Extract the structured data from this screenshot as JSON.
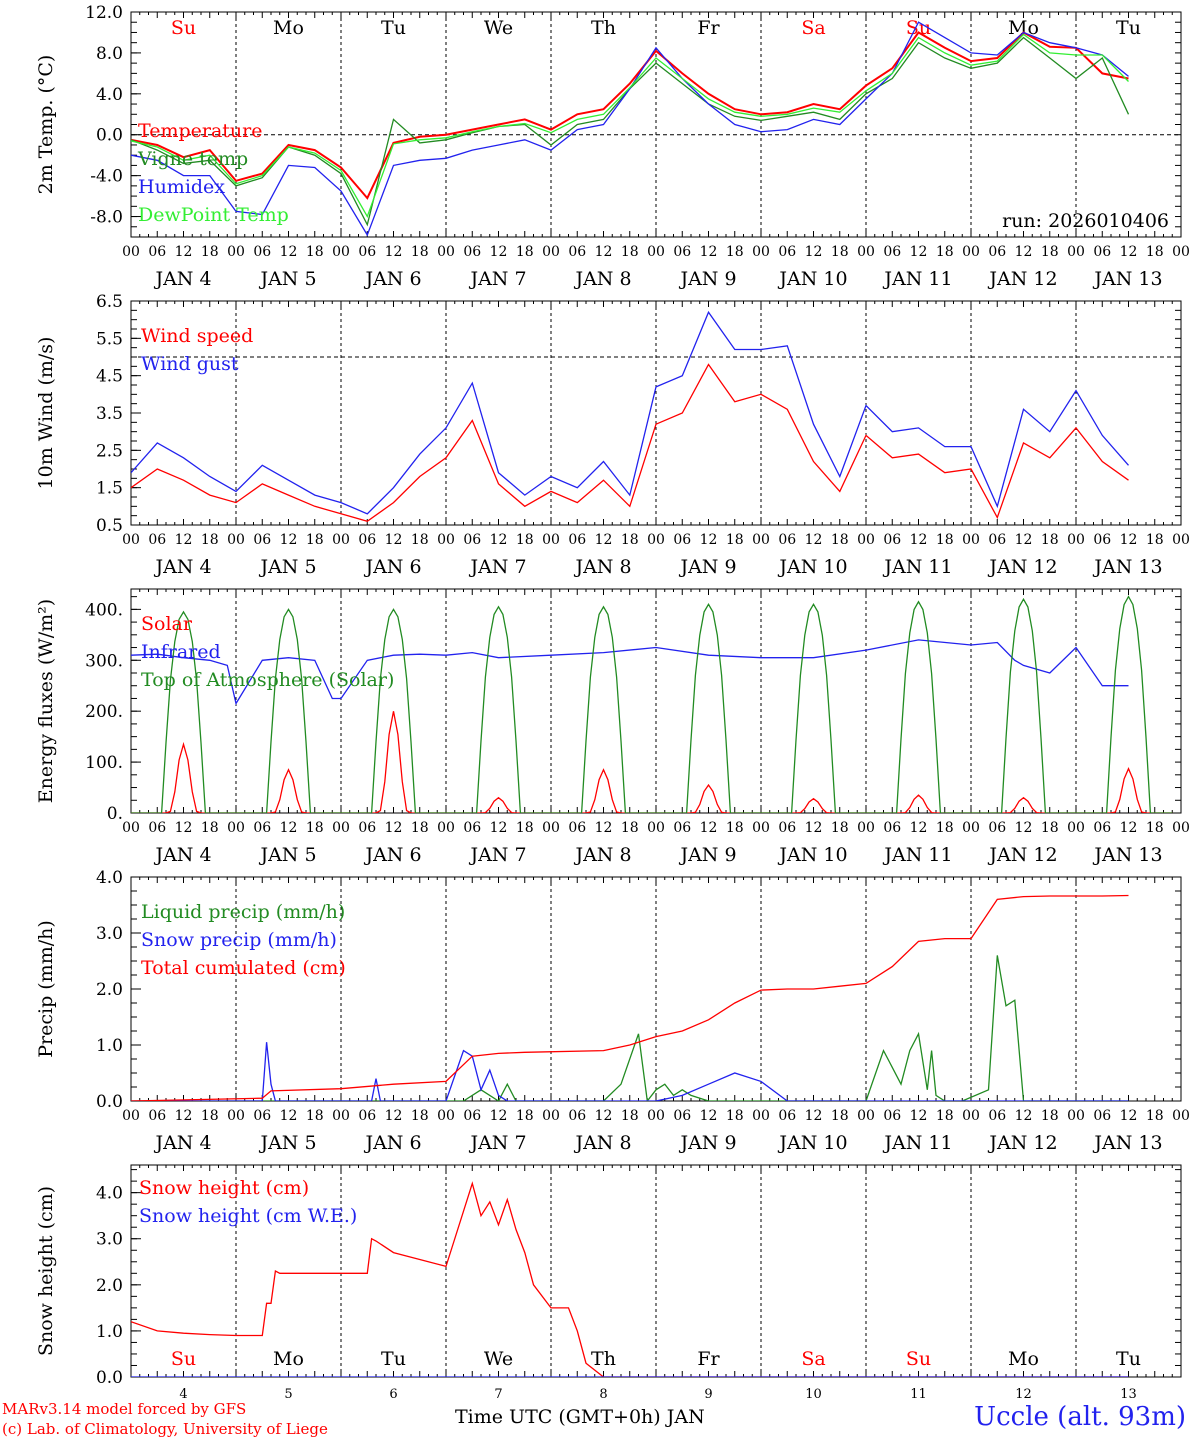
{
  "meta": {
    "run_label": "run: 2026010406",
    "credit_line1": "MARv3.14 model forced by GFS",
    "credit_line2": "(c) Lab. of Climatology, University of Liege",
    "x_axis_title": "Time UTC (GMT+0h) JAN",
    "station": "Uccle (alt. 93m)"
  },
  "time_axis": {
    "hour_ticks": [
      "00",
      "06",
      "12",
      "18"
    ],
    "date_labels": [
      "JAN  4",
      "JAN  5",
      "JAN  6",
      "JAN  7",
      "JAN  8",
      "JAN  9",
      "JAN 10",
      "JAN 11",
      "JAN 12",
      "JAN 13"
    ],
    "weekdays": [
      "Su",
      "Mo",
      "Tu",
      "We",
      "Th",
      "Fr",
      "Sa",
      "Su",
      "Mo",
      "Tu"
    ],
    "day_numbers": [
      "4",
      "5",
      "6",
      "7",
      "8",
      "9",
      "10",
      "11",
      "12",
      "13"
    ],
    "weekend_color": "#ff0000",
    "weekday_color": "#000000"
  },
  "colors": {
    "red": "#ff0000",
    "dark_green": "#228b22",
    "blue": "#2222ee",
    "light_green": "#33ee33"
  },
  "chart_data": [
    {
      "type": "line",
      "title": "2m Temp.",
      "ylabel": "2m Temp. (°C)",
      "ylim": [
        -10,
        12
      ],
      "y_ticks": [
        "12.0",
        "8.0",
        "4.0",
        "0.0",
        "-4.0",
        "-8.0"
      ],
      "y_tick_values": [
        12,
        8,
        4,
        0,
        -4,
        -8
      ],
      "reference_line": 0,
      "x_unit": "hours since JAN 4 00 UTC",
      "series": [
        {
          "name": "Temperature",
          "color": "#ff0000",
          "x": [
            0,
            6,
            12,
            18,
            24,
            30,
            36,
            42,
            48,
            54,
            60,
            66,
            72,
            78,
            84,
            90,
            96,
            102,
            108,
            114,
            120,
            126,
            132,
            138,
            144,
            150,
            156,
            162,
            168,
            174,
            180,
            186,
            192,
            198,
            204,
            210,
            216,
            222,
            228
          ],
          "values": [
            -0.5,
            -1,
            -2.2,
            -1.5,
            -4.5,
            -3.8,
            -1,
            -1.5,
            -3.2,
            -6.2,
            -0.8,
            -0.2,
            0,
            0.5,
            1,
            1.5,
            0.5,
            2,
            2.5,
            5,
            8.2,
            6,
            4,
            2.5,
            2,
            2.2,
            3,
            2.5,
            4.8,
            6.5,
            10,
            8.5,
            7.2,
            7.5,
            10,
            8.6,
            8.5,
            6,
            5.5
          ]
        },
        {
          "name": "Vigne temp",
          "color": "#228b22",
          "x": [
            0,
            6,
            12,
            18,
            24,
            30,
            36,
            42,
            48,
            54,
            60,
            66,
            72,
            78,
            84,
            90,
            96,
            102,
            108,
            114,
            120,
            126,
            132,
            138,
            144,
            150,
            156,
            162,
            168,
            174,
            180,
            186,
            192,
            198,
            204,
            210,
            216,
            222,
            228
          ],
          "values": [
            -0.5,
            -1.5,
            -2.8,
            -2.5,
            -5,
            -4.2,
            -1.2,
            -2,
            -3.8,
            -8.8,
            1.5,
            -0.8,
            -0.5,
            0.2,
            0.8,
            1,
            -1,
            1,
            1.5,
            4.5,
            7,
            5,
            3,
            1.8,
            1.4,
            1.8,
            2.2,
            1.5,
            4,
            5.5,
            9,
            7.5,
            6.5,
            7,
            9.5,
            7.5,
            5.5,
            7.5,
            2
          ]
        },
        {
          "name": "Humidex",
          "color": "#2222ee",
          "x": [
            0,
            6,
            12,
            18,
            24,
            30,
            36,
            42,
            48,
            54,
            60,
            66,
            72,
            78,
            84,
            90,
            96,
            102,
            108,
            114,
            120,
            126,
            132,
            138,
            144,
            150,
            156,
            162,
            168,
            174,
            180,
            186,
            192,
            198,
            204,
            210,
            216,
            222,
            228
          ],
          "values": [
            -2,
            -2.5,
            -4,
            -4,
            -7.5,
            -7.8,
            -3,
            -3.2,
            -5.5,
            -9.8,
            -3,
            -2.5,
            -2.3,
            -1.5,
            -1,
            -0.5,
            -1.5,
            0.5,
            1,
            4.5,
            8.5,
            5.5,
            3,
            1,
            0.3,
            0.5,
            1.5,
            1,
            3.5,
            6,
            11,
            9.5,
            8,
            7.8,
            10,
            9,
            8.5,
            7.8,
            5.7
          ]
        },
        {
          "name": "DewPoint Temp",
          "color": "#33ee33",
          "x": [
            0,
            6,
            12,
            18,
            24,
            30,
            36,
            42,
            48,
            54,
            60,
            66,
            72,
            78,
            84,
            90,
            96,
            102,
            108,
            114,
            120,
            126,
            132,
            138,
            144,
            150,
            156,
            162,
            168,
            174,
            180,
            186,
            192,
            198,
            204,
            210,
            216,
            222,
            228
          ],
          "values": [
            -0.6,
            -1.2,
            -2.5,
            -2,
            -4.8,
            -4,
            -1.2,
            -1.8,
            -3.5,
            -8,
            -0.9,
            -0.5,
            -0.3,
            0.3,
            0.8,
            1.1,
            0.2,
            1.5,
            2,
            4.6,
            7.5,
            5.5,
            3.5,
            2.2,
            1.8,
            2,
            2.6,
            2.2,
            4.3,
            6,
            9.5,
            8,
            6.8,
            7.2,
            9.8,
            8,
            7.8,
            7.8,
            5.2
          ]
        }
      ]
    },
    {
      "type": "line",
      "title": "10m Wind",
      "ylabel": "10m Wind (m/s)",
      "ylim": [
        0.5,
        6.5
      ],
      "y_ticks": [
        "6.5",
        "5.5",
        "4.5",
        "3.5",
        "2.5",
        "1.5",
        "0.5"
      ],
      "y_tick_values": [
        6.5,
        5.5,
        4.5,
        3.5,
        2.5,
        1.5,
        0.5
      ],
      "reference_line": 5.0,
      "x_unit": "hours since JAN 4 00 UTC",
      "series": [
        {
          "name": "Wind speed",
          "color": "#ff0000",
          "x": [
            0,
            6,
            12,
            18,
            24,
            30,
            36,
            42,
            48,
            54,
            60,
            66,
            72,
            78,
            84,
            90,
            96,
            102,
            108,
            114,
            120,
            126,
            132,
            138,
            144,
            150,
            156,
            162,
            168,
            174,
            180,
            186,
            192,
            198,
            204,
            210,
            216,
            222,
            228
          ],
          "values": [
            1.5,
            2,
            1.7,
            1.3,
            1.1,
            1.6,
            1.3,
            1,
            0.8,
            0.6,
            1.1,
            1.8,
            2.3,
            3.3,
            1.6,
            1,
            1.4,
            1.1,
            1.7,
            1,
            3.2,
            3.5,
            4.8,
            3.8,
            4,
            3.6,
            2.2,
            1.4,
            2.9,
            2.3,
            2.4,
            1.9,
            2,
            0.7,
            2.7,
            2.3,
            3.1,
            2.2,
            1.7
          ]
        },
        {
          "name": "Wind gust",
          "color": "#2222ee",
          "x": [
            0,
            6,
            12,
            18,
            24,
            30,
            36,
            42,
            48,
            54,
            60,
            66,
            72,
            78,
            84,
            90,
            96,
            102,
            108,
            114,
            120,
            126,
            132,
            138,
            144,
            150,
            156,
            162,
            168,
            174,
            180,
            186,
            192,
            198,
            204,
            210,
            216,
            222,
            228
          ],
          "values": [
            1.9,
            2.7,
            2.3,
            1.8,
            1.4,
            2.1,
            1.7,
            1.3,
            1.1,
            0.8,
            1.5,
            2.4,
            3.1,
            4.3,
            1.9,
            1.3,
            1.8,
            1.5,
            2.2,
            1.3,
            4.2,
            4.5,
            6.2,
            5.2,
            5.2,
            5.3,
            3.2,
            1.8,
            3.7,
            3,
            3.1,
            2.6,
            2.6,
            1,
            3.6,
            3,
            4.1,
            2.9,
            2.1
          ]
        }
      ]
    },
    {
      "type": "line",
      "title": "Energy fluxes",
      "ylabel": "Energy fluxes (W/m²)",
      "ylim": [
        0,
        440
      ],
      "y_ticks": [
        "400.",
        "300.",
        "200.",
        "100.",
        "0."
      ],
      "y_tick_values": [
        400,
        300,
        200,
        100,
        0
      ],
      "x_unit": "hours since JAN 4 00 UTC",
      "series": [
        {
          "name": "Solar",
          "color": "#ff0000",
          "daily_peaks": [
            135,
            85,
            200,
            30,
            85,
            55,
            28,
            35,
            30,
            87
          ],
          "peak_hour_utc": 12
        },
        {
          "name": "Infrared",
          "color": "#2222ee",
          "x": [
            0,
            6,
            12,
            18,
            22,
            24,
            30,
            36,
            42,
            46,
            48,
            54,
            60,
            66,
            72,
            78,
            84,
            96,
            108,
            120,
            132,
            144,
            156,
            168,
            180,
            192,
            198,
            202,
            204,
            210,
            216,
            222,
            228
          ],
          "values": [
            310,
            312,
            305,
            300,
            290,
            215,
            300,
            305,
            300,
            225,
            225,
            300,
            310,
            312,
            310,
            315,
            305,
            310,
            315,
            325,
            310,
            305,
            305,
            320,
            340,
            330,
            335,
            300,
            290,
            275,
            325,
            250,
            250
          ]
        },
        {
          "name": "Top of Atmosphere (Solar)",
          "color": "#228b22",
          "daily_peaks": [
            395,
            400,
            400,
            405,
            405,
            410,
            410,
            415,
            420,
            425
          ],
          "peak_hour_utc": 12
        }
      ]
    },
    {
      "type": "line",
      "title": "Precip",
      "ylabel": "Precip (mm/h)",
      "ylim": [
        0,
        4.0
      ],
      "y_ticks": [
        "4.0",
        "3.0",
        "2.0",
        "1.0",
        "0.0"
      ],
      "y_tick_values": [
        4,
        3,
        2,
        1,
        0
      ],
      "x_unit": "hours since JAN 4 00 UTC",
      "series": [
        {
          "name": "Liquid precip (mm/h)",
          "color": "#228b22",
          "x": [
            0,
            60,
            76,
            80,
            84,
            86,
            88,
            108,
            112,
            116,
            118,
            120,
            122,
            124,
            126,
            128,
            132,
            152,
            168,
            172,
            174,
            176,
            178,
            180,
            182,
            183,
            184,
            186,
            190,
            196,
            198,
            200,
            202,
            204,
            206,
            228
          ],
          "values": [
            0,
            0,
            0,
            0.2,
            0,
            0.3,
            0,
            0,
            0.3,
            1.2,
            0,
            0.2,
            0.3,
            0.1,
            0.2,
            0.1,
            0,
            0,
            0,
            0.9,
            0.6,
            0.3,
            0.9,
            1.2,
            0.2,
            0.9,
            0.1,
            0,
            0,
            0.2,
            2.6,
            1.7,
            1.8,
            0,
            0,
            0
          ]
        },
        {
          "name": "Snow precip (mm/h)",
          "color": "#2222ee",
          "x": [
            0,
            30,
            31,
            32,
            33,
            48,
            55,
            56,
            57,
            72,
            76,
            78,
            80,
            82,
            84,
            86,
            88,
            120,
            126,
            132,
            138,
            144,
            150,
            228
          ],
          "values": [
            0,
            0,
            1.05,
            0.3,
            0,
            0,
            0,
            0.4,
            0,
            0,
            0.9,
            0.8,
            0.2,
            0.55,
            0.1,
            0,
            0,
            0,
            0.1,
            0.3,
            0.5,
            0.35,
            0,
            0
          ]
        },
        {
          "name": "Total cumulated (cm)",
          "color": "#ff0000",
          "x": [
            0,
            30,
            32,
            48,
            60,
            72,
            78,
            84,
            90,
            108,
            114,
            120,
            126,
            132,
            138,
            144,
            150,
            156,
            162,
            168,
            174,
            180,
            186,
            192,
            198,
            204,
            210,
            216,
            222,
            228
          ],
          "values": [
            0,
            0.05,
            0.18,
            0.22,
            0.3,
            0.35,
            0.8,
            0.85,
            0.87,
            0.9,
            1.0,
            1.15,
            1.25,
            1.45,
            1.75,
            1.98,
            2.0,
            2.0,
            2.05,
            2.1,
            2.4,
            2.85,
            2.9,
            2.9,
            3.6,
            3.65,
            3.66,
            3.66,
            3.66,
            3.67
          ]
        }
      ]
    },
    {
      "type": "line",
      "title": "Snow height",
      "ylabel": "Snow height (cm)",
      "ylim": [
        0,
        4.6
      ],
      "y_ticks": [
        "4.0",
        "3.0",
        "2.0",
        "1.0",
        "0.0"
      ],
      "y_tick_values": [
        4,
        3,
        2,
        1,
        0
      ],
      "x_unit": "hours since JAN 4 00 UTC",
      "series": [
        {
          "name": "Snow height (cm)",
          "color": "#ff0000",
          "x": [
            0,
            6,
            12,
            18,
            24,
            30,
            31,
            32,
            33,
            34,
            48,
            54,
            55,
            56,
            60,
            72,
            78,
            80,
            82,
            84,
            86,
            88,
            90,
            92,
            96,
            100,
            102,
            104,
            108,
            112,
            228
          ],
          "values": [
            1.2,
            1.0,
            0.95,
            0.92,
            0.9,
            0.9,
            1.6,
            1.6,
            2.3,
            2.25,
            2.25,
            2.25,
            3.0,
            2.95,
            2.7,
            2.4,
            4.2,
            3.5,
            3.8,
            3.3,
            3.85,
            3.2,
            2.7,
            2.0,
            1.5,
            1.5,
            1.0,
            0.3,
            0,
            0,
            0
          ]
        },
        {
          "name": "Snow height (cm W.E.)",
          "color": "#2222ee",
          "x": [
            0,
            228
          ],
          "values": [
            0,
            0
          ]
        }
      ]
    }
  ]
}
